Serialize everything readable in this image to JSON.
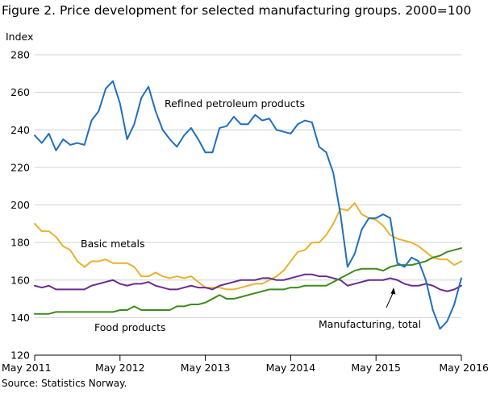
{
  "chart_data": {
    "type": "line",
    "title": "Figure 2. Price development for selected manufacturing groups. 2000=100",
    "ylabel": "Index",
    "xlabel": "",
    "ylim": [
      120,
      280
    ],
    "yticks": [
      120,
      140,
      160,
      180,
      200,
      220,
      240,
      260,
      280
    ],
    "xlim": [
      "2011-05",
      "2016-05"
    ],
    "xticks": [
      "May 2011",
      "May 2012",
      "May 2013",
      "May 2014",
      "May 2015",
      "May 2016"
    ],
    "grid": "horizontal",
    "legend": "none (lines labelled directly)",
    "source": "Source: Statistics Norway.",
    "x": [
      "2011-05",
      "2011-06",
      "2011-07",
      "2011-08",
      "2011-09",
      "2011-10",
      "2011-11",
      "2011-12",
      "2012-01",
      "2012-02",
      "2012-03",
      "2012-04",
      "2012-05",
      "2012-06",
      "2012-07",
      "2012-08",
      "2012-09",
      "2012-10",
      "2012-11",
      "2012-12",
      "2013-01",
      "2013-02",
      "2013-03",
      "2013-04",
      "2013-05",
      "2013-06",
      "2013-07",
      "2013-08",
      "2013-09",
      "2013-10",
      "2013-11",
      "2013-12",
      "2014-01",
      "2014-02",
      "2014-03",
      "2014-04",
      "2014-05",
      "2014-06",
      "2014-07",
      "2014-08",
      "2014-09",
      "2014-10",
      "2014-11",
      "2014-12",
      "2015-01",
      "2015-02",
      "2015-03",
      "2015-04",
      "2015-05",
      "2015-06",
      "2015-07",
      "2015-08",
      "2015-09",
      "2015-10",
      "2015-11",
      "2015-12",
      "2016-01",
      "2016-02",
      "2016-03",
      "2016-04",
      "2016-05"
    ],
    "series": [
      {
        "name": "Refined petroleum products",
        "color": "#1f6fbe",
        "values": [
          237,
          233,
          238,
          229,
          235,
          232,
          233,
          232,
          245,
          250,
          262,
          266,
          254,
          235,
          243,
          257,
          263,
          250,
          240,
          235,
          231,
          237,
          241,
          235,
          228,
          228,
          241,
          242,
          247,
          243,
          243,
          248,
          245,
          246,
          240,
          239,
          238,
          243,
          245,
          244,
          231,
          228,
          217,
          195,
          167,
          174,
          187,
          193,
          193,
          195,
          193,
          169,
          167,
          172,
          170,
          160,
          144,
          134,
          138,
          147,
          161
        ]
      },
      {
        "name": "Basic metals",
        "color": "#e8b22c",
        "values": [
          190,
          186,
          186,
          183,
          178,
          176,
          170,
          167,
          170,
          170,
          171,
          169,
          169,
          169,
          167,
          162,
          162,
          164,
          162,
          161,
          162,
          161,
          162,
          159,
          156,
          156,
          156,
          155,
          155,
          156,
          157,
          158,
          158,
          160,
          162,
          165,
          170,
          175,
          176,
          180,
          180,
          184,
          190,
          198,
          197,
          201,
          195,
          193,
          192,
          189,
          184,
          182,
          181,
          180,
          178,
          175,
          172,
          171,
          171,
          168,
          170
        ]
      },
      {
        "name": "Manufacturing, total",
        "color": "#6a2b8e",
        "values": [
          157,
          156,
          157,
          155,
          155,
          155,
          155,
          155,
          157,
          158,
          159,
          160,
          158,
          157,
          158,
          158,
          159,
          157,
          156,
          155,
          155,
          156,
          157,
          156,
          156,
          155,
          157,
          158,
          159,
          160,
          160,
          160,
          161,
          161,
          160,
          160,
          161,
          162,
          163,
          163,
          162,
          162,
          161,
          160,
          157,
          158,
          159,
          160,
          160,
          160,
          161,
          160,
          158,
          157,
          157,
          158,
          157,
          155,
          154,
          155,
          157
        ]
      },
      {
        "name": "Food products",
        "color": "#3e8b1c",
        "values": [
          142,
          142,
          142,
          143,
          143,
          143,
          143,
          143,
          143,
          143,
          143,
          143,
          144,
          144,
          146,
          144,
          144,
          144,
          144,
          144,
          146,
          146,
          147,
          147,
          148,
          150,
          152,
          150,
          150,
          151,
          152,
          153,
          154,
          155,
          155,
          155,
          156,
          156,
          157,
          157,
          157,
          157,
          159,
          161,
          163,
          165,
          166,
          166,
          166,
          165,
          167,
          168,
          168,
          168,
          169,
          170,
          172,
          173,
          175,
          176,
          177
        ]
      }
    ]
  }
}
